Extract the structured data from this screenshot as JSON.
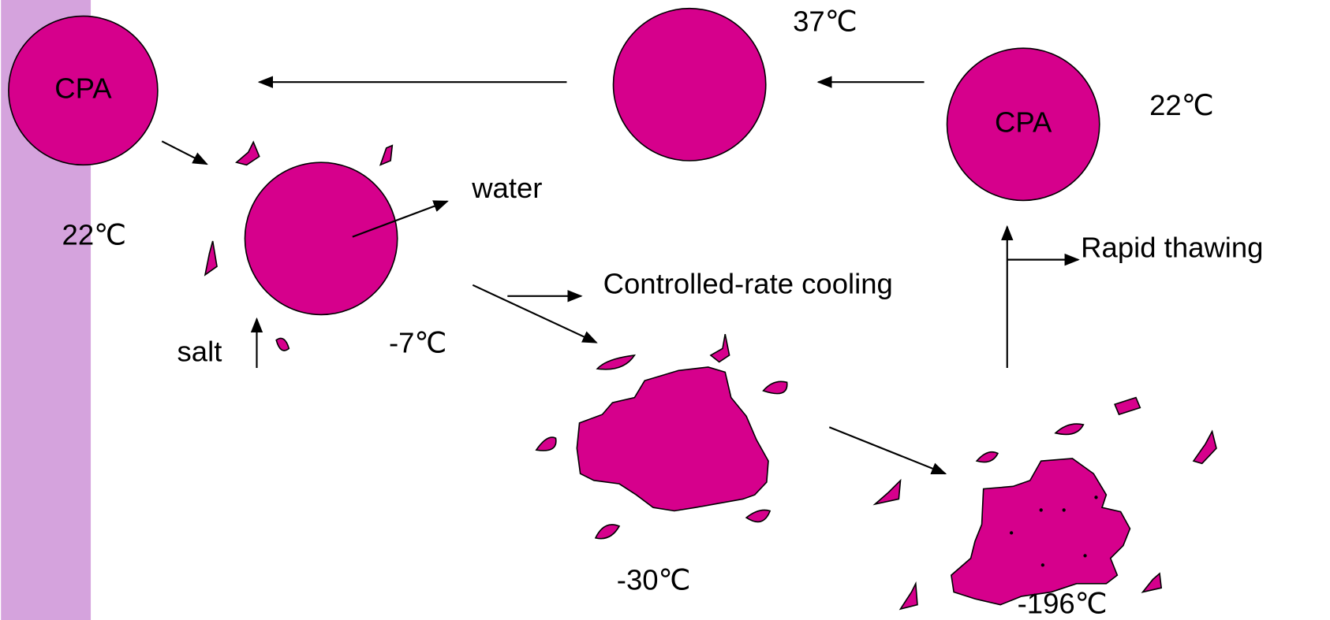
{
  "labels": {
    "cpa_left": "CPA",
    "cpa_right": "CPA",
    "temp_37": "37℃",
    "temp_22_right": "22℃",
    "temp_22_left": "22℃",
    "water": "water",
    "controlled_cooling": "Controlled-rate cooling",
    "rapid_thawing": "Rapid thawing",
    "salt": "salt",
    "temp_minus7": "-7℃",
    "temp_minus30": "-30℃",
    "temp_minus196": "-196℃"
  }
}
